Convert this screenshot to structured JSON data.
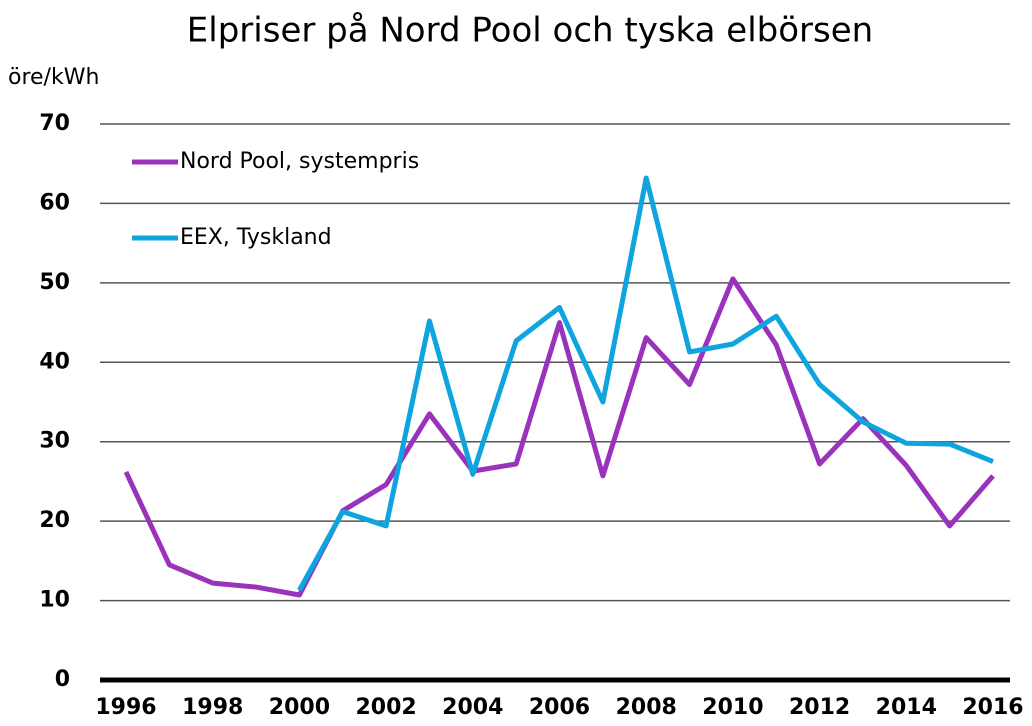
{
  "chart_data": {
    "type": "line",
    "title": "Elpriser på Nord Pool och tyska elbörsen",
    "y_label": "öre/kWh",
    "x": [
      1996,
      1997,
      1998,
      1999,
      2000,
      2001,
      2002,
      2003,
      2004,
      2005,
      2006,
      2007,
      2008,
      2009,
      2010,
      2011,
      2012,
      2013,
      2014,
      2015,
      2016
    ],
    "series": [
      {
        "name": "Nord Pool, systempris",
        "color": "#9933bb",
        "values": [
          26.2,
          14.5,
          12.2,
          11.7,
          10.7,
          21.3,
          24.6,
          33.5,
          26.3,
          27.2,
          45.0,
          25.7,
          43.1,
          37.2,
          50.5,
          42.2,
          27.2,
          32.9,
          27.0,
          19.4,
          25.7
        ]
      },
      {
        "name": "EEX, Tyskland",
        "color": "#0ea5de",
        "values": [
          null,
          null,
          null,
          null,
          11.3,
          21.2,
          19.4,
          45.2,
          25.9,
          42.7,
          46.9,
          35.0,
          63.2,
          41.3,
          42.3,
          45.8,
          37.2,
          32.5,
          29.8,
          29.7,
          27.5
        ]
      }
    ],
    "xlim": [
      1996,
      2016
    ],
    "xticks": [
      1996,
      1998,
      2000,
      2002,
      2004,
      2006,
      2008,
      2010,
      2012,
      2014,
      2016
    ],
    "ylim": [
      0,
      70
    ],
    "yticks": [
      0,
      10,
      20,
      30,
      40,
      50,
      60,
      70
    ],
    "grid": true,
    "legend": "upper left"
  }
}
